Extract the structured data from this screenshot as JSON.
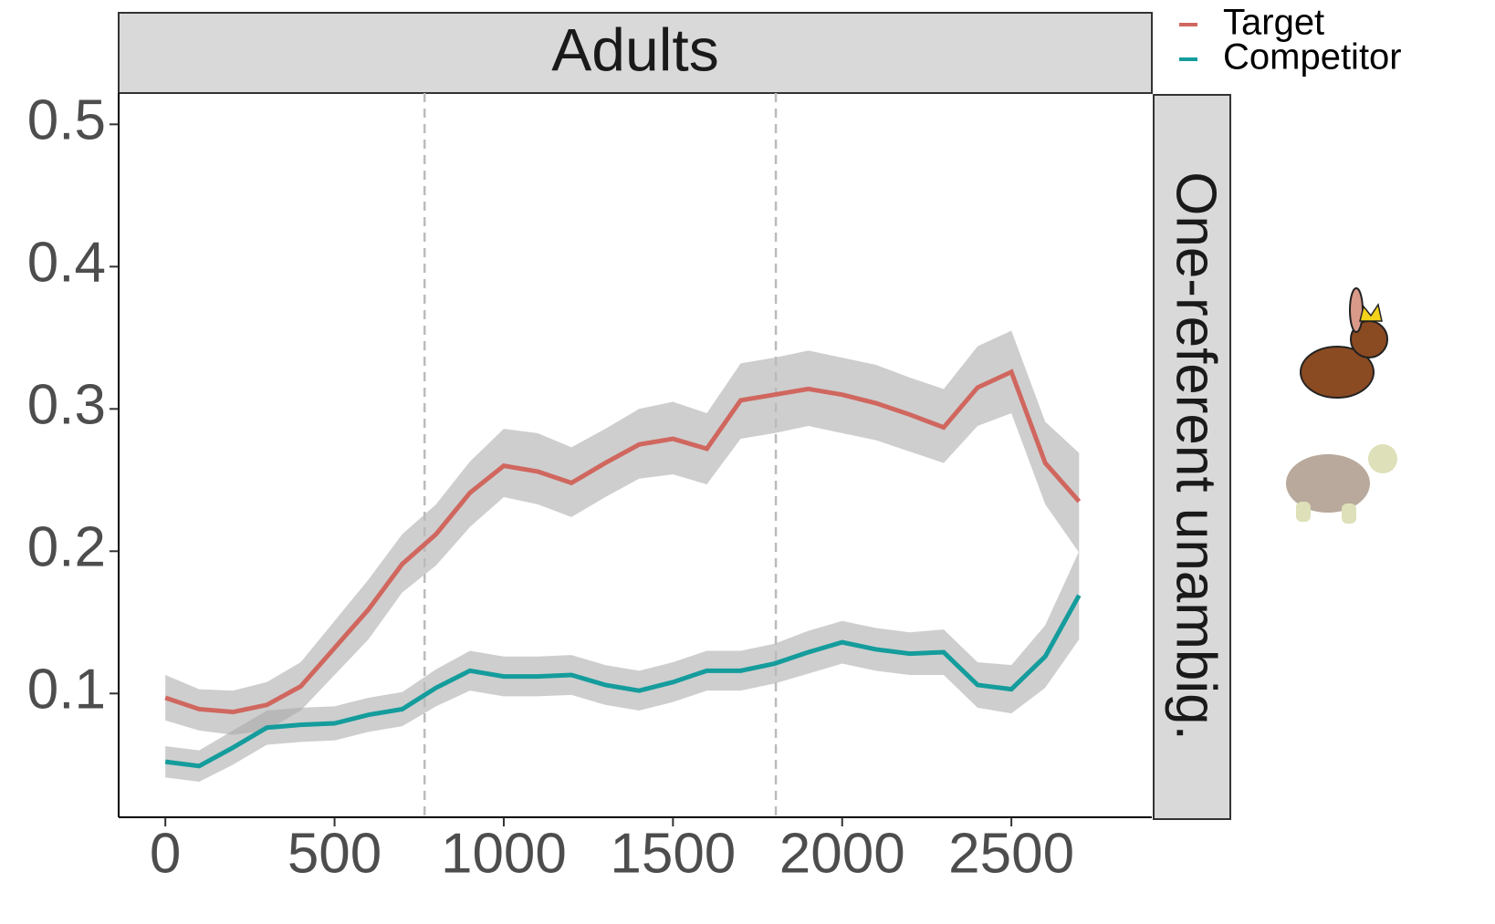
{
  "chart_data": {
    "type": "line",
    "strip_title": "Adults",
    "facet_label": "One-referent unambig.",
    "x": [
      0,
      100,
      200,
      300,
      400,
      500,
      600,
      700,
      800,
      900,
      1000,
      1100,
      1200,
      1300,
      1400,
      1500,
      1600,
      1700,
      1800,
      1900,
      2000,
      2100,
      2200,
      2300,
      2400,
      2500,
      2600,
      2700
    ],
    "series": [
      {
        "name": "Target",
        "color": "#d0675f",
        "values": [
          0.097,
          0.089,
          0.087,
          0.092,
          0.105,
          0.132,
          0.159,
          0.191,
          0.212,
          0.241,
          0.26,
          0.256,
          0.248,
          0.262,
          0.275,
          0.279,
          0.272,
          0.306,
          0.31,
          0.314,
          0.31,
          0.304,
          0.296,
          0.287,
          0.315,
          0.326,
          0.262,
          0.235
        ],
        "upper": [
          0.113,
          0.103,
          0.102,
          0.108,
          0.122,
          0.151,
          0.18,
          0.212,
          0.233,
          0.263,
          0.286,
          0.283,
          0.273,
          0.286,
          0.3,
          0.305,
          0.297,
          0.332,
          0.336,
          0.341,
          0.336,
          0.331,
          0.322,
          0.314,
          0.344,
          0.355,
          0.291,
          0.269
        ],
        "lower": [
          0.081,
          0.074,
          0.071,
          0.074,
          0.088,
          0.113,
          0.138,
          0.171,
          0.19,
          0.217,
          0.238,
          0.233,
          0.224,
          0.238,
          0.251,
          0.254,
          0.247,
          0.279,
          0.283,
          0.288,
          0.283,
          0.278,
          0.27,
          0.262,
          0.288,
          0.297,
          0.233,
          0.199
        ]
      },
      {
        "name": "Competitor",
        "color": "#159c9c",
        "values": [
          0.052,
          0.049,
          0.062,
          0.076,
          0.078,
          0.079,
          0.085,
          0.089,
          0.104,
          0.116,
          0.112,
          0.112,
          0.113,
          0.106,
          0.102,
          0.108,
          0.116,
          0.116,
          0.121,
          0.129,
          0.136,
          0.131,
          0.128,
          0.129,
          0.106,
          0.103,
          0.126,
          0.169
        ],
        "upper": [
          0.063,
          0.06,
          0.074,
          0.088,
          0.09,
          0.091,
          0.097,
          0.101,
          0.117,
          0.13,
          0.126,
          0.126,
          0.127,
          0.12,
          0.116,
          0.122,
          0.13,
          0.13,
          0.135,
          0.144,
          0.151,
          0.146,
          0.143,
          0.145,
          0.122,
          0.12,
          0.148,
          0.2
        ],
        "lower": [
          0.041,
          0.038,
          0.05,
          0.064,
          0.066,
          0.067,
          0.073,
          0.077,
          0.091,
          0.102,
          0.098,
          0.098,
          0.099,
          0.092,
          0.088,
          0.094,
          0.102,
          0.102,
          0.107,
          0.114,
          0.121,
          0.116,
          0.113,
          0.113,
          0.09,
          0.086,
          0.104,
          0.138
        ]
      }
    ],
    "band_color": "#a6a6a6",
    "vlines": [
      766,
      1804
    ],
    "xlim": [
      -138,
      2915
    ],
    "xticks": [
      0,
      500,
      1000,
      1500,
      2000,
      2500
    ],
    "ylim": [
      0.013,
      0.522
    ],
    "yticks": [
      0.1,
      0.2,
      0.3,
      0.4,
      0.5
    ],
    "legend": "top-right"
  }
}
